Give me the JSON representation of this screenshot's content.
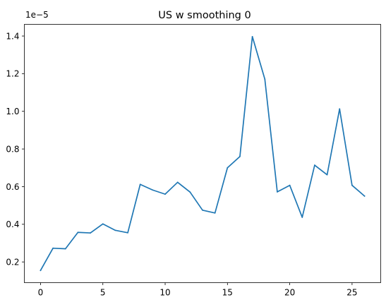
{
  "chart_data": {
    "type": "line",
    "title": "US w smoothing 0",
    "xlabel": "",
    "ylabel": "",
    "y_offset_label": "1e−5",
    "xlim": [
      -1.3,
      27.3
    ],
    "ylim": [
      9e-07,
      1.462e-05
    ],
    "x_ticks": [
      0,
      5,
      10,
      15,
      20,
      25
    ],
    "y_ticks": [
      2e-06,
      4e-06,
      6e-06,
      8e-06,
      1e-05,
      1.2e-05,
      1.4e-05
    ],
    "y_tick_labels": [
      "0.2",
      "0.4",
      "0.6",
      "0.8",
      "1.0",
      "1.2",
      "1.4"
    ],
    "grid": false,
    "line_color": "#1f77b4",
    "series": [
      {
        "x": [
          0,
          1,
          2,
          3,
          4,
          5,
          6,
          7,
          8,
          9,
          10,
          11,
          12,
          13,
          14,
          15,
          16,
          17,
          18,
          19,
          20,
          21,
          22,
          23,
          24,
          25,
          26
        ],
        "values": [
          1.55e-06,
          2.73e-06,
          2.7e-06,
          3.57e-06,
          3.54e-06,
          4.02e-06,
          3.68e-06,
          3.55e-06,
          6.12e-06,
          5.82e-06,
          5.6e-06,
          6.23e-06,
          5.71e-06,
          4.75e-06,
          4.6e-06,
          7e-06,
          7.6e-06,
          1.397e-05,
          1.171e-05,
          5.72e-06,
          6.07e-06,
          4.37e-06,
          7.14e-06,
          6.63e-06,
          1.013e-05,
          6.07e-06,
          5.5e-06
        ]
      }
    ]
  }
}
